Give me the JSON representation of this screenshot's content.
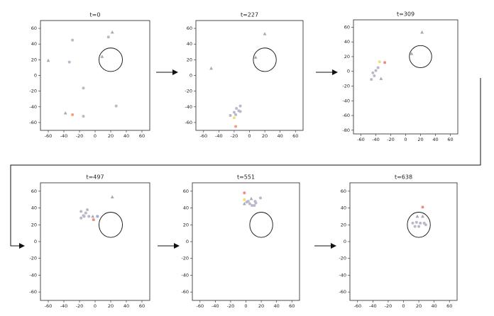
{
  "chart_data": [
    {
      "type": "scatter",
      "title": "t=0",
      "xlim": [
        -70,
        70
      ],
      "ylim": [
        -70,
        70
      ],
      "xticks": [
        -60,
        -40,
        -20,
        0,
        20,
        40,
        60
      ],
      "yticks": [
        -60,
        -40,
        -20,
        0,
        20,
        40,
        60
      ],
      "circle": {
        "center": [
          20,
          20
        ],
        "radius": 15
      },
      "series": [
        {
          "color": "#b9b9cc",
          "marker": "circle",
          "x": [
            -33,
            -29,
            17,
            -15,
            -15,
            27
          ],
          "values": [
            17,
            45,
            49,
            -16,
            -52,
            -39
          ]
        },
        {
          "color": "#a8a8b0",
          "marker": "triangle",
          "x": [
            -60,
            22,
            9,
            -38
          ],
          "values": [
            19,
            55,
            24,
            -48
          ]
        },
        {
          "color": "#f2a07e",
          "marker": "circle",
          "x": [
            -29
          ],
          "values": [
            -50
          ]
        }
      ]
    },
    {
      "type": "scatter",
      "title": "t=227",
      "xlim": [
        -70,
        70
      ],
      "ylim": [
        -70,
        70
      ],
      "xticks": [
        -60,
        -40,
        -20,
        0,
        20,
        40,
        60
      ],
      "yticks": [
        -60,
        -40,
        -20,
        0,
        20,
        40,
        60
      ],
      "circle": {
        "center": [
          20,
          20
        ],
        "radius": 15
      },
      "series": [
        {
          "color": "#b9b9cc",
          "marker": "circle",
          "x": [
            -12,
            -17,
            -14,
            -20,
            -25,
            -18,
            -12
          ],
          "values": [
            -39,
            -42,
            -45,
            -47,
            -51,
            -50,
            -46
          ]
        },
        {
          "color": "#a8a8b0",
          "marker": "triangle",
          "x": [
            -50,
            20,
            8
          ],
          "values": [
            9,
            53,
            23
          ]
        },
        {
          "color": "#f3dc7a",
          "marker": "circle",
          "x": [
            -20
          ],
          "values": [
            -54
          ]
        },
        {
          "color": "#f2a07e",
          "marker": "circle",
          "x": [
            -18
          ],
          "values": [
            -65
          ]
        }
      ]
    },
    {
      "type": "scatter",
      "title": "t=309",
      "xlim": [
        -70,
        70
      ],
      "ylim": [
        -85,
        70
      ],
      "xticks": [
        -60,
        -40,
        -20,
        0,
        20,
        40,
        60
      ],
      "yticks": [
        -80,
        -60,
        -40,
        -20,
        0,
        20,
        40,
        60
      ],
      "circle": {
        "center": [
          20,
          20
        ],
        "radius": 15
      },
      "series": [
        {
          "color": "#b9b9cc",
          "marker": "circle",
          "x": [
            -37,
            -40,
            -44,
            -42,
            -46
          ],
          "values": [
            5,
            1,
            -2,
            -6,
            -11
          ]
        },
        {
          "color": "#a8a8b0",
          "marker": "triangle",
          "x": [
            22,
            8,
            -33
          ],
          "values": [
            53,
            24,
            -10
          ]
        },
        {
          "color": "#f3dc7a",
          "marker": "circle",
          "x": [
            -35
          ],
          "values": [
            13
          ]
        },
        {
          "color": "#f08a84",
          "marker": "circle",
          "x": [
            -28
          ],
          "values": [
            12
          ]
        }
      ]
    },
    {
      "type": "scatter",
      "title": "t=497",
      "xlim": [
        -70,
        70
      ],
      "ylim": [
        -70,
        70
      ],
      "xticks": [
        -60,
        -40,
        -20,
        0,
        20,
        40,
        60
      ],
      "yticks": [
        -60,
        -40,
        -20,
        0,
        20,
        40,
        60
      ],
      "circle": {
        "center": [
          20,
          20
        ],
        "radius": 15
      },
      "series": [
        {
          "color": "#b9b9cc",
          "marker": "circle",
          "x": [
            -10,
            -18,
            -12,
            -15,
            -8,
            -18,
            -14
          ],
          "values": [
            38,
            36,
            34,
            31,
            30,
            28,
            30
          ]
        },
        {
          "color": "#a8a8b0",
          "marker": "triangle",
          "x": [
            22,
            -3
          ],
          "values": [
            53,
            30
          ]
        },
        {
          "color": "#9aa8e0",
          "marker": "circle",
          "x": [
            3
          ],
          "values": [
            30
          ]
        },
        {
          "color": "#f08a84",
          "marker": "circle",
          "x": [
            -2
          ],
          "values": [
            26
          ]
        }
      ]
    },
    {
      "type": "scatter",
      "title": "t=551",
      "xlim": [
        -70,
        70
      ],
      "ylim": [
        -70,
        70
      ],
      "xticks": [
        -60,
        -40,
        -20,
        0,
        20,
        40,
        60
      ],
      "yticks": [
        -60,
        -40,
        -20,
        0,
        20,
        40,
        60
      ],
      "circle": {
        "center": [
          20,
          20
        ],
        "radius": 15
      },
      "series": [
        {
          "color": "#b9b9cc",
          "marker": "circle",
          "x": [
            3,
            12,
            13,
            19,
            5,
            8,
            11,
            1
          ],
          "values": [
            48,
            48,
            46,
            52,
            45,
            43,
            43,
            47
          ]
        },
        {
          "color": "#a8a8b0",
          "marker": "triangle",
          "x": [
            7,
            -2
          ],
          "values": [
            51,
            45
          ]
        },
        {
          "color": "#f3dc7a",
          "marker": "circle",
          "x": [
            -2
          ],
          "values": [
            50
          ]
        },
        {
          "color": "#f08a84",
          "marker": "circle",
          "x": [
            -2
          ],
          "values": [
            58
          ]
        }
      ]
    },
    {
      "type": "scatter",
      "title": "t=638",
      "xlim": [
        -70,
        70
      ],
      "ylim": [
        -70,
        70
      ],
      "xticks": [
        -60,
        -40,
        -20,
        0,
        20,
        40,
        60
      ],
      "yticks": [
        -60,
        -40,
        -20,
        0,
        20,
        40,
        60
      ],
      "circle": {
        "center": [
          20,
          20
        ],
        "radius": 15
      },
      "series": [
        {
          "color": "#b9b9cc",
          "marker": "circle",
          "x": [
            12,
            17,
            22,
            27,
            20,
            15,
            29
          ],
          "values": [
            22,
            23,
            22,
            22,
            18,
            18,
            20
          ]
        },
        {
          "color": "#a8a8b0",
          "marker": "triangle",
          "x": [
            18,
            25
          ],
          "values": [
            30,
            30
          ]
        },
        {
          "color": "#f08a84",
          "marker": "circle",
          "x": [
            25
          ],
          "values": [
            41
          ]
        }
      ]
    }
  ]
}
